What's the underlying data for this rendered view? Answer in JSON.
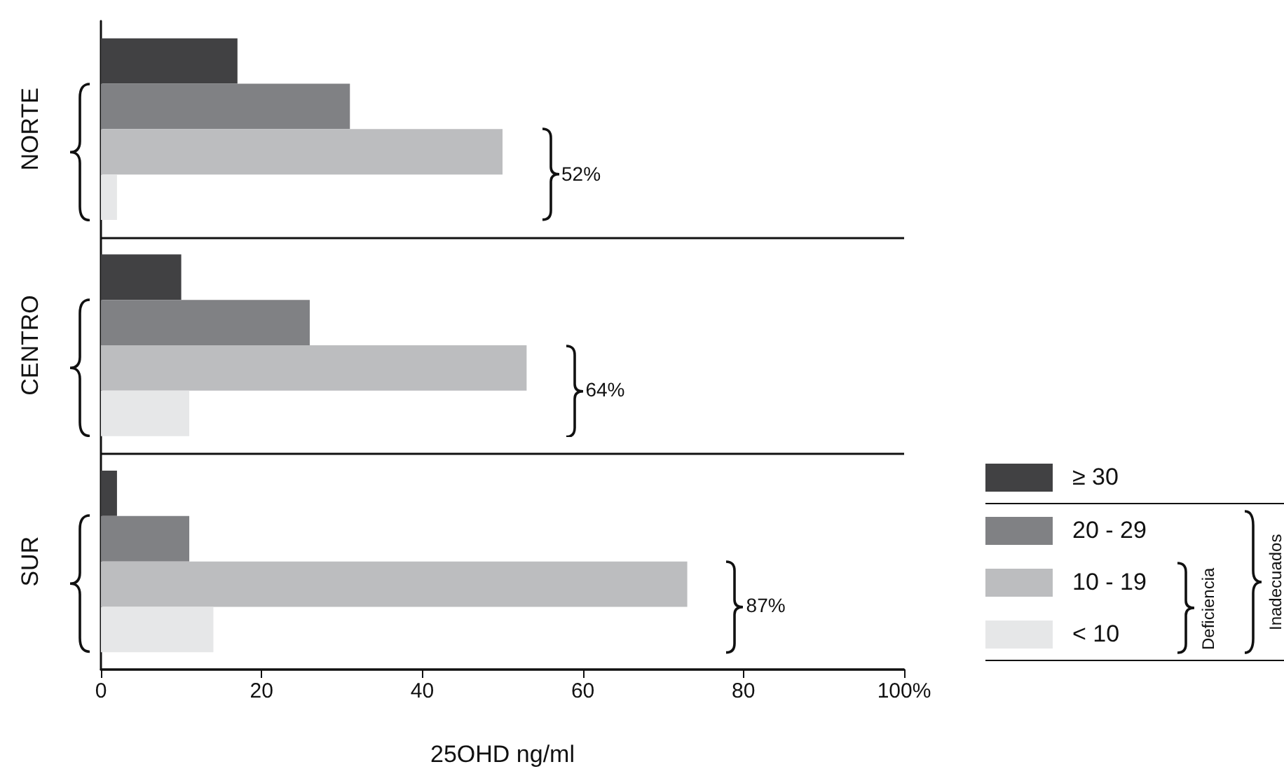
{
  "chart_data": {
    "type": "bar",
    "orientation": "horizontal",
    "xlabel": "25OHD ng/ml",
    "categories": [
      "NORTE",
      "CENTRO",
      "SUR"
    ],
    "series": [
      {
        "name": "≥ 30",
        "color": "#414143",
        "values": [
          17,
          10,
          2
        ]
      },
      {
        "name": "20 - 29",
        "color": "#808184",
        "values": [
          31,
          26,
          11
        ]
      },
      {
        "name": "10 - 19",
        "color": "#bcbdbf",
        "values": [
          50,
          53,
          73
        ]
      },
      {
        "name": "< 10",
        "color": "#e6e7e8",
        "values": [
          2,
          11,
          14
        ]
      }
    ],
    "xlim": [
      0,
      100
    ],
    "xticks": [
      0,
      20,
      40,
      60,
      80,
      {
        "value": 100,
        "label": "100%"
      }
    ],
    "grid": "y",
    "legend": "bottom right",
    "annotations": [
      "52%",
      "64%",
      "87%",
      "Deficiencia",
      "Inadecuados"
    ]
  }
}
